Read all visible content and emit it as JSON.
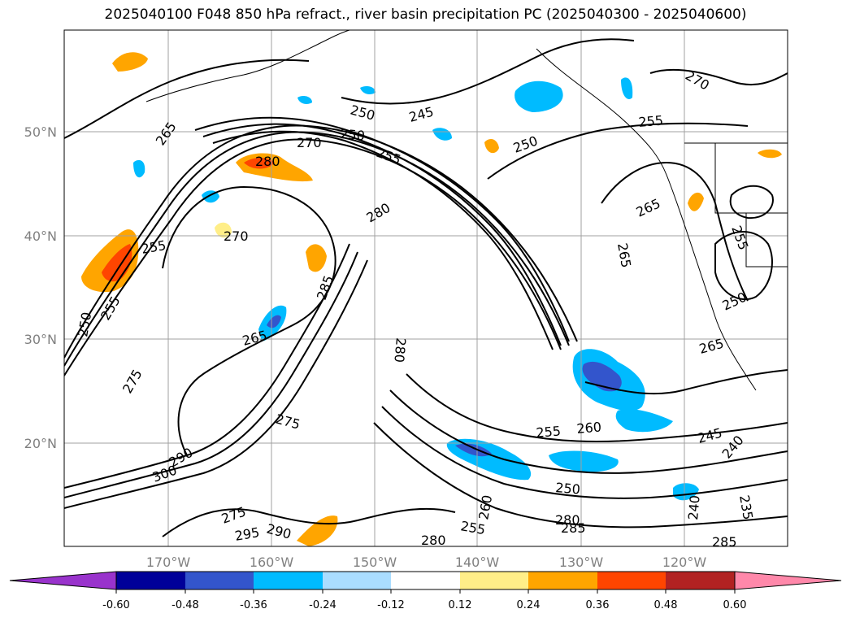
{
  "title": "2025040100 F048 850 hPa refract., river basin precipitation PC (2025040300 - 2025040600)",
  "map": {
    "lat_labels": [
      "50°N",
      "40°N",
      "30°N",
      "20°N"
    ],
    "lon_labels": [
      "170°W",
      "160°W",
      "150°W",
      "140°W",
      "130°W",
      "120°W"
    ],
    "contour_labels": [
      "250",
      "245",
      "250",
      "255",
      "270",
      "280",
      "265",
      "270",
      "250",
      "255",
      "280",
      "270",
      "265",
      "255",
      "255",
      "250",
      "255",
      "265",
      "285",
      "280",
      "265",
      "275",
      "275",
      "290",
      "300",
      "275",
      "295",
      "290",
      "255",
      "260",
      "250",
      "245",
      "240",
      "280",
      "285",
      "255",
      "260",
      "235",
      "240",
      "280",
      "285",
      "265",
      "250"
    ],
    "colors": {
      "gridline": "#a0a0a0",
      "contour": "#000000",
      "coast": "#000000"
    }
  },
  "colorbar": {
    "ticks": [
      "-0.60",
      "-0.48",
      "-0.36",
      "-0.24",
      "-0.12",
      "0.12",
      "0.24",
      "0.36",
      "0.48",
      "0.60"
    ],
    "colors": [
      "#9933cc",
      "#000099",
      "#3355cc",
      "#00bbff",
      "#aaddff",
      "#ffffff",
      "#ffee88",
      "#ffa500",
      "#ff4500",
      "#b22222",
      "#ff88aa"
    ]
  }
}
